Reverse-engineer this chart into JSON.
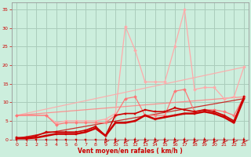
{
  "bg_color": "#cceedd",
  "grid_color": "#aaccbb",
  "xlabel": "Vent moyen/en rafales ( km/h )",
  "xlabel_color": "#cc0000",
  "tick_color": "#cc0000",
  "ylim": [
    0,
    37
  ],
  "xlim": [
    -0.5,
    23.5
  ],
  "yticks": [
    0,
    5,
    10,
    15,
    20,
    25,
    30,
    35
  ],
  "xticks": [
    0,
    1,
    2,
    3,
    4,
    5,
    6,
    7,
    8,
    9,
    10,
    11,
    12,
    13,
    14,
    15,
    16,
    17,
    18,
    19,
    20,
    21,
    22,
    23
  ],
  "line_trend_light": {
    "x": [
      0,
      23
    ],
    "y": [
      6.5,
      19.5
    ],
    "color": "#ffaaaa",
    "lw": 0.9,
    "alpha": 0.9
  },
  "line_trend_mid": {
    "x": [
      0,
      23
    ],
    "y": [
      6.5,
      11.5
    ],
    "color": "#ff8888",
    "lw": 0.9,
    "alpha": 0.9
  },
  "line_trend_dark": {
    "x": [
      0,
      23
    ],
    "y": [
      0.3,
      11.0
    ],
    "color": "#cc0000",
    "lw": 0.9,
    "alpha": 0.8
  },
  "line_light_peaks": {
    "x": [
      0,
      3,
      4,
      5,
      6,
      7,
      8,
      9,
      10,
      11,
      12,
      13,
      14,
      15,
      16,
      17,
      18,
      19,
      20,
      21,
      22,
      23
    ],
    "y": [
      6.5,
      6.5,
      4.5,
      5.0,
      5.0,
      5.0,
      5.0,
      5.5,
      7.0,
      30.5,
      24.0,
      15.5,
      15.5,
      15.5,
      25.0,
      35.0,
      13.5,
      14.0,
      14.0,
      11.0,
      11.5,
      19.5
    ],
    "color": "#ffaaaa",
    "lw": 0.9,
    "marker": "D",
    "ms": 2.0
  },
  "line_mid_peaks": {
    "x": [
      0,
      3,
      4,
      5,
      6,
      7,
      8,
      9,
      10,
      11,
      12,
      13,
      14,
      15,
      16,
      17,
      18,
      19,
      20,
      21,
      22,
      23
    ],
    "y": [
      6.5,
      6.5,
      4.0,
      4.5,
      4.5,
      4.5,
      4.5,
      4.5,
      6.5,
      11.0,
      11.5,
      6.5,
      6.5,
      6.5,
      13.0,
      13.5,
      7.5,
      8.0,
      8.0,
      7.5,
      6.5,
      11.5
    ],
    "color": "#ff7777",
    "lw": 0.9,
    "marker": "D",
    "ms": 2.0
  },
  "line_zero": {
    "x": [
      0,
      1,
      2,
      3,
      4,
      5,
      6,
      7,
      8,
      9,
      10,
      11,
      12,
      13,
      14,
      15,
      16,
      17,
      18,
      19,
      20,
      21,
      22,
      23
    ],
    "y": [
      0,
      0,
      0,
      0,
      0,
      0,
      0,
      0,
      0,
      0,
      0,
      0,
      0,
      0,
      0,
      0,
      0,
      0,
      0,
      0,
      0,
      0,
      0,
      0
    ],
    "color": "#cc0000",
    "lw": 1.0,
    "marker": "s",
    "ms": 2.0
  },
  "line_low1": {
    "x": [
      0,
      1,
      2,
      3,
      4,
      5,
      6,
      7,
      8,
      9,
      10,
      11,
      12,
      13,
      14,
      15,
      16,
      17,
      18,
      19,
      20,
      21,
      22,
      23
    ],
    "y": [
      0.3,
      0.3,
      0.5,
      1.0,
      1.5,
      1.5,
      1.5,
      2.0,
      3.0,
      1.0,
      4.5,
      4.5,
      5.0,
      6.5,
      5.5,
      6.0,
      6.5,
      7.0,
      7.0,
      7.5,
      7.0,
      6.0,
      4.5,
      11.0
    ],
    "color": "#cc0000",
    "lw": 1.8,
    "marker": "s",
    "ms": 2.0
  },
  "line_low2": {
    "x": [
      0,
      1,
      2,
      3,
      4,
      5,
      6,
      7,
      8,
      9,
      10,
      11,
      12,
      13,
      14,
      15,
      16,
      17,
      18,
      19,
      20,
      21,
      22,
      23
    ],
    "y": [
      0.5,
      0.5,
      1.0,
      2.0,
      2.0,
      2.0,
      2.0,
      2.5,
      3.5,
      1.0,
      6.5,
      7.0,
      7.0,
      8.0,
      7.5,
      7.5,
      8.5,
      8.0,
      7.5,
      8.0,
      7.5,
      6.5,
      5.0,
      11.5
    ],
    "color": "#cc0000",
    "lw": 1.2,
    "marker": "s",
    "ms": 2.0
  },
  "wind_arrows_x": [
    9,
    10,
    11,
    12,
    13,
    14,
    15,
    16,
    17,
    18,
    19,
    20,
    21,
    22,
    23
  ]
}
